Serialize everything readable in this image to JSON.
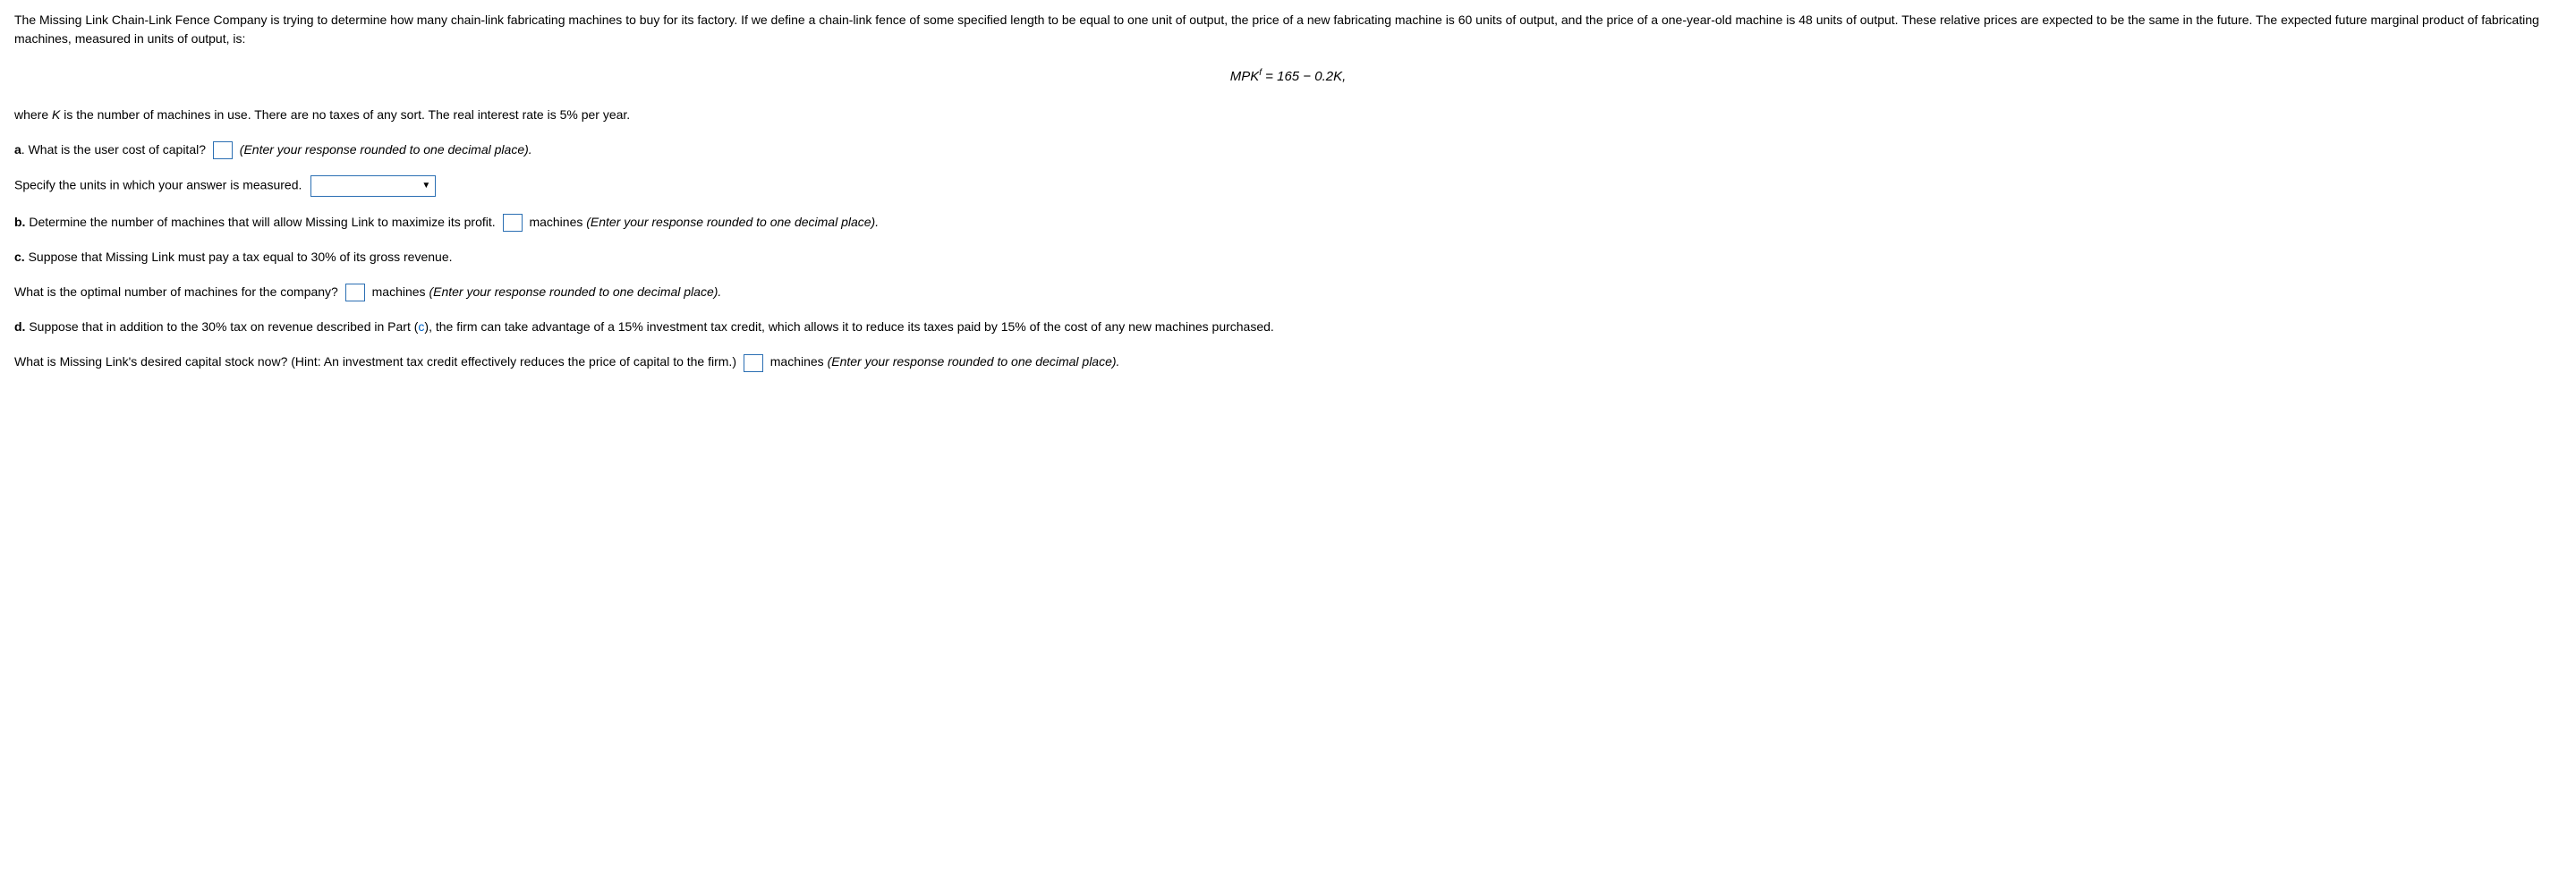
{
  "intro": "The Missing Link Chain-Link Fence Company is trying to determine how many chain-link fabricating machines to buy for its factory. If we define a chain-link fence of some specified length to be equal to one unit of output, the price of a new fabricating machine is 60 units of output, and the price of a one-year-old machine is 48 units of output. These relative prices are expected to be the same in the future. The expected future marginal product of fabricating machines, measured in units of output, is:",
  "formula_mpk": "MPK",
  "formula_sup": "f",
  "formula_eq": " =  165 − 0.2K,",
  "where_pre": "where ",
  "where_k": "K",
  "where_post": " is the number of machines in use. There are no taxes of any sort. The real interest rate is 5% per year.",
  "a": {
    "label": "a",
    "q": ". What is the user cost of capital? ",
    "hint": "(Enter your response rounded to one decimal place).",
    "specify": "Specify the units in which your answer is measured."
  },
  "b": {
    "label": "b.",
    "q": " Determine the number of machines that will allow Missing Link to maximize its profit. ",
    "unit": " machines ",
    "hint": "(Enter your response rounded to one decimal place)."
  },
  "c": {
    "label": "c.",
    "q": " Suppose that Missing Link must pay a tax equal to 30% of its gross revenue.",
    "q2": "What is the optimal number of machines for the company? ",
    "unit": " machines ",
    "hint": "(Enter your response rounded to one decimal place)."
  },
  "d": {
    "label": "d.",
    "q_pre": " Suppose that in addition to the 30% tax on revenue described in Part (",
    "q_c": "c",
    "q_post": "), the firm can take advantage of a 15% investment tax credit, which allows it to reduce its taxes paid by 15% of the cost of any new machines purchased.",
    "q2": "What is Missing Link's desired capital stock now? (Hint: An investment tax credit effectively reduces the price of capital to the firm.) ",
    "unit": " machines ",
    "hint": "(Enter your response rounded to one decimal place)."
  }
}
